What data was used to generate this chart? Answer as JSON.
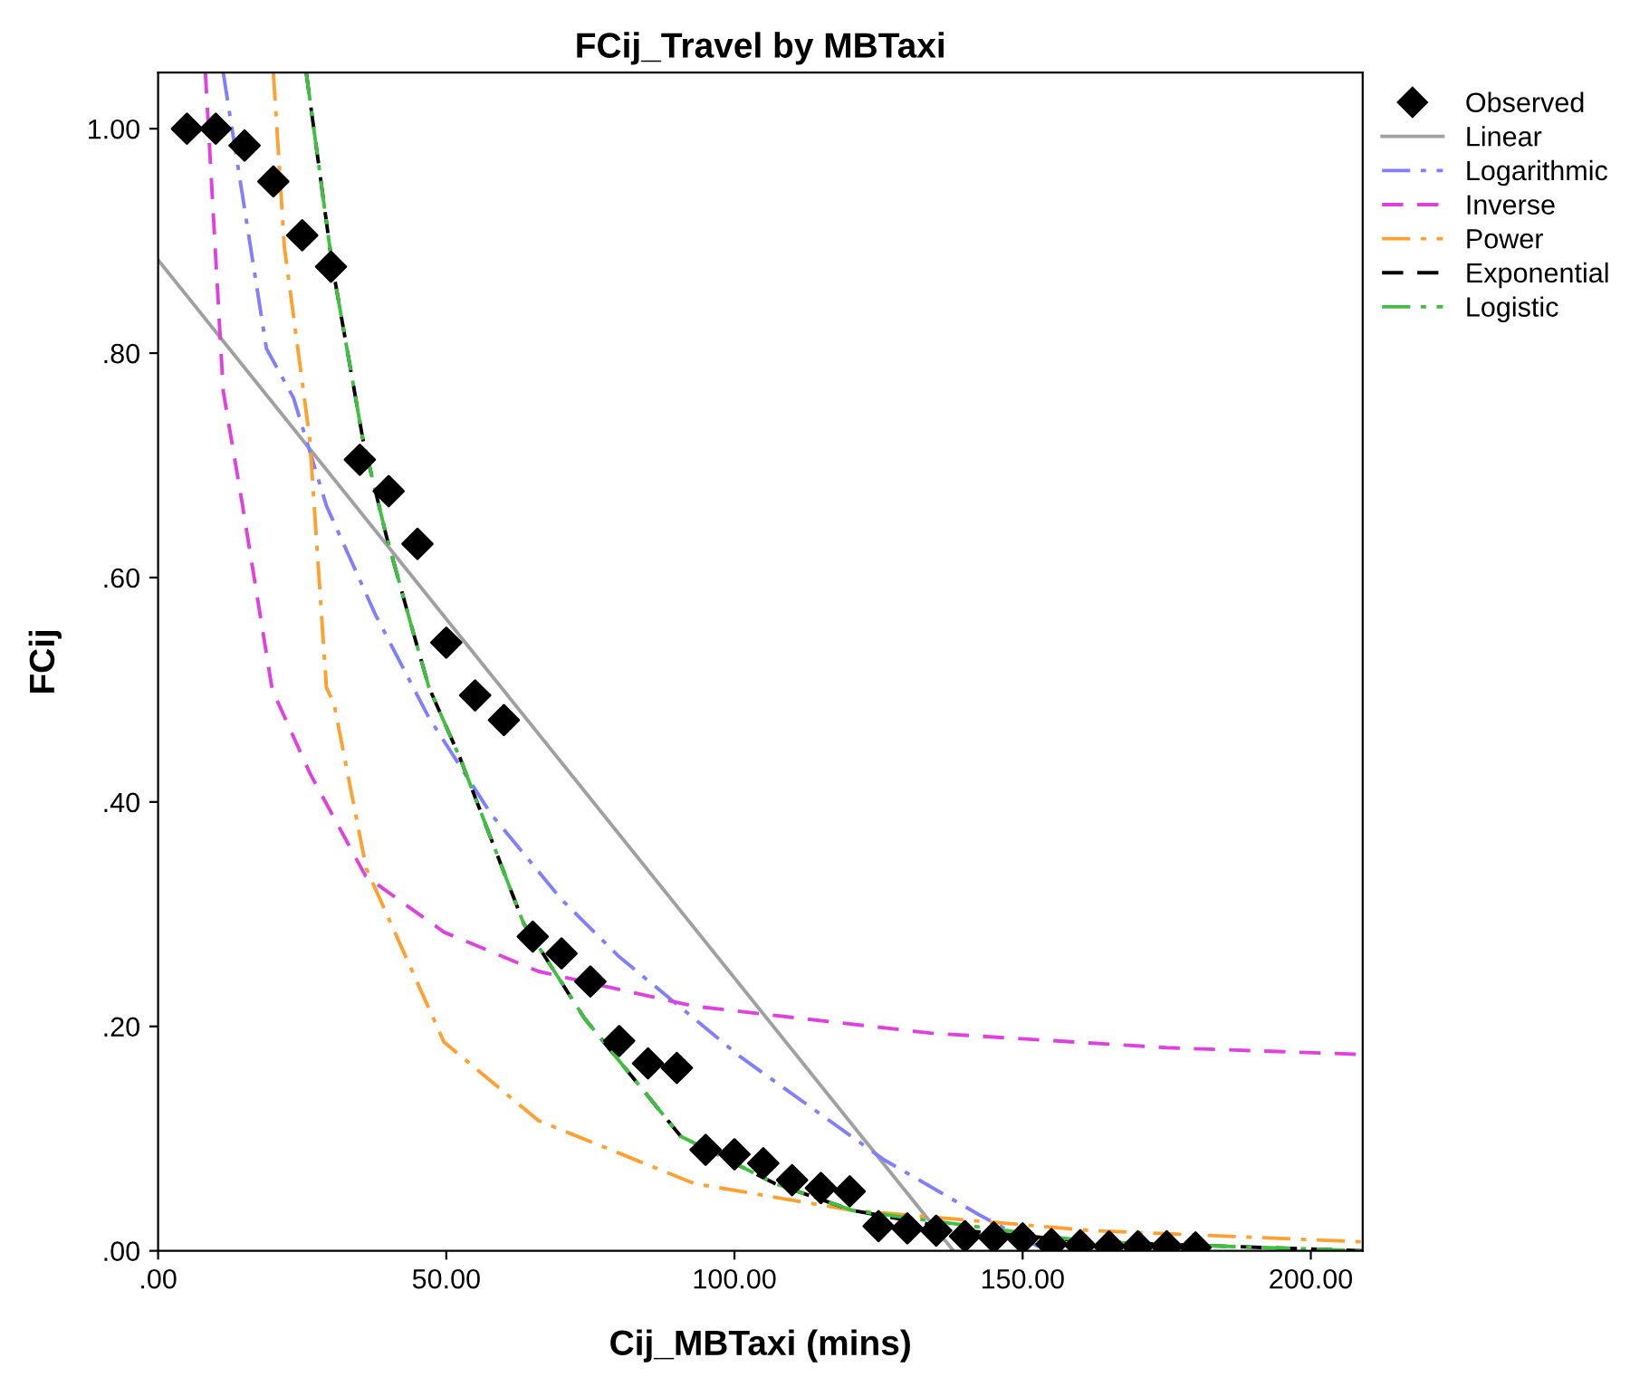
{
  "chart_data": {
    "type": "line",
    "title": "FCij_Travel by MBTaxi",
    "xlabel": "Cij_MBTaxi (mins)",
    "ylabel": "FCij",
    "xlim": [
      0,
      209
    ],
    "ylim": [
      0,
      1.05
    ],
    "xticks": [
      {
        "value": 0,
        "label": ".00"
      },
      {
        "value": 50,
        "label": "50.00"
      },
      {
        "value": 100,
        "label": "100.00"
      },
      {
        "value": 150,
        "label": "150.00"
      },
      {
        "value": 200,
        "label": "200.00"
      }
    ],
    "yticks": [
      {
        "value": 0,
        "label": ".00"
      },
      {
        "value": 0.2,
        "label": ".20"
      },
      {
        "value": 0.4,
        "label": ".40"
      },
      {
        "value": 0.6,
        "label": ".60"
      },
      {
        "value": 0.8,
        "label": ".80"
      },
      {
        "value": 1.0,
        "label": "1.00"
      }
    ],
    "grid": false,
    "legend": "top right",
    "series": [
      {
        "name": "Observed",
        "type": "scatter",
        "marker": "diamond",
        "color": "#000000",
        "x": [
          5,
          10,
          15,
          20,
          25,
          30,
          35,
          40,
          45,
          50,
          55,
          60,
          65,
          70,
          75,
          80,
          85,
          90,
          95,
          100,
          105,
          110,
          115,
          120,
          125,
          130,
          135,
          140,
          145,
          150,
          155,
          160,
          165,
          170,
          175,
          180
        ],
        "values": [
          1.0,
          1.0,
          0.985,
          0.953,
          0.905,
          0.877,
          0.705,
          0.677,
          0.63,
          0.542,
          0.495,
          0.473,
          0.28,
          0.265,
          0.24,
          0.187,
          0.167,
          0.163,
          0.09,
          0.086,
          0.078,
          0.063,
          0.056,
          0.053,
          0.022,
          0.02,
          0.018,
          0.013,
          0.012,
          0.011,
          0.006,
          0.005,
          0.004,
          0.004,
          0.004,
          0.003
        ]
      },
      {
        "name": "Linear",
        "line_style": "solid",
        "color": "#a0a0a0",
        "x": [
          0,
          138
        ],
        "values": [
          0.883,
          0.0
        ]
      },
      {
        "name": "Logarithmic",
        "line_style": "dashdot",
        "color": "#7f7fff",
        "x": [
          11.3,
          18.8,
          23.5,
          29.2,
          37.7,
          47,
          57.8,
          70,
          79.8,
          101,
          126,
          142.5,
          153
        ],
        "values": [
          1.05,
          0.804,
          0.76,
          0.664,
          0.567,
          0.475,
          0.389,
          0.313,
          0.263,
          0.173,
          0.081,
          0.032,
          0.003
        ]
      },
      {
        "name": "Inverse",
        "line_style": "dashed",
        "color": "#e040e0",
        "x": [
          8.2,
          11.3,
          14.5,
          19.8,
          26.4,
          36,
          49.6,
          66,
          93,
          134,
          175,
          209
        ],
        "values": [
          1.05,
          0.766,
          0.669,
          0.5,
          0.425,
          0.334,
          0.284,
          0.249,
          0.218,
          0.194,
          0.181,
          0.175
        ]
      },
      {
        "name": "Power",
        "line_style": "dashdot",
        "color": "#ffa030",
        "x": [
          20,
          21.9,
          26.3,
          29.2,
          30.5,
          36.1,
          49.6,
          66,
          93,
          120.5,
          162,
          209
        ],
        "values": [
          1.05,
          0.895,
          0.724,
          0.502,
          0.488,
          0.341,
          0.186,
          0.116,
          0.06,
          0.036,
          0.018,
          0.008
        ]
      },
      {
        "name": "Exponential",
        "line_style": "dashed",
        "color": "#000000",
        "x": [
          25.7,
          30.2,
          35.5,
          39.6,
          44,
          47,
          52.4,
          63.4,
          74,
          90.7,
          107,
          120.5,
          140,
          162,
          209
        ],
        "values": [
          1.05,
          0.879,
          0.724,
          0.637,
          0.556,
          0.502,
          0.439,
          0.292,
          0.207,
          0.102,
          0.06,
          0.036,
          0.018,
          0.008,
          0.0
        ]
      },
      {
        "name": "Logistic",
        "line_style": "dashdot",
        "color": "#40c040",
        "x": [
          25.7,
          30.2,
          35.5,
          39.6,
          44,
          47,
          52.4,
          63.4,
          74,
          90.7,
          107,
          120.5,
          162,
          209
        ],
        "values": [
          1.05,
          0.879,
          0.724,
          0.637,
          0.556,
          0.502,
          0.439,
          0.292,
          0.207,
          0.102,
          0.06,
          0.036,
          0.008,
          0.0
        ]
      }
    ]
  }
}
